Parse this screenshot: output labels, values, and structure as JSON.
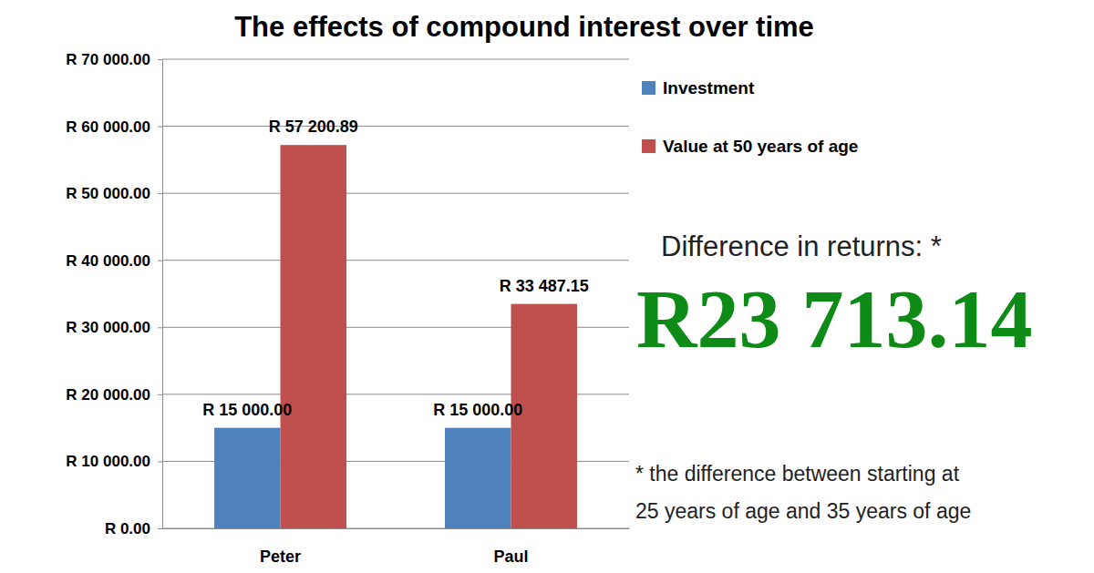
{
  "chart_data": {
    "type": "bar",
    "title": "The effects of compound interest over time",
    "categories": [
      "Peter",
      "Paul"
    ],
    "series": [
      {
        "name": "Investment",
        "color": "#4f81bd",
        "values": [
          15000,
          15000
        ],
        "value_labels": [
          "R 15 000.00",
          "R 15 000.00"
        ]
      },
      {
        "name": "Value at 50 years of age",
        "color": "#c0504d",
        "values": [
          57200.89,
          33487.15
        ],
        "value_labels": [
          "R 57 200.89",
          "R 33 487.15"
        ]
      }
    ],
    "ylim": [
      0,
      70000
    ],
    "yticks": [
      {
        "value": 0,
        "label": "R 0.00"
      },
      {
        "value": 10000,
        "label": "R 10 000.00"
      },
      {
        "value": 20000,
        "label": "R 20 000.00"
      },
      {
        "value": 30000,
        "label": "R 30 000.00"
      },
      {
        "value": 40000,
        "label": "R 40 000.00"
      },
      {
        "value": 50000,
        "label": "R 50 000.00"
      },
      {
        "value": 60000,
        "label": "R 60 000.00"
      },
      {
        "value": 70000,
        "label": "R 70 000.00"
      }
    ],
    "grid": true,
    "data_labels": true,
    "legend": "right",
    "annotations": [
      "Difference in returns: *",
      "R23 713.14",
      "* the difference between starting at",
      "25 years of age and 35 years of age"
    ]
  }
}
